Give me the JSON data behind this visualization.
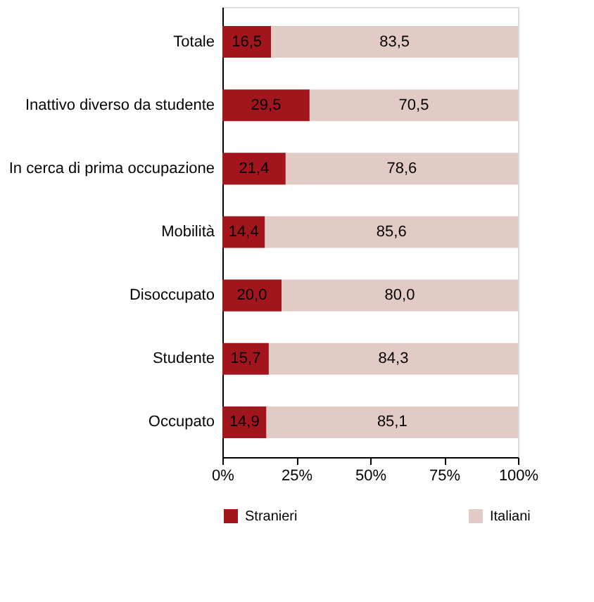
{
  "chart_data": {
    "type": "bar",
    "orientation": "horizontal",
    "stacked": true,
    "categories": [
      "Totale",
      "Inattivo diverso da studente",
      "In cerca di prima occupazione",
      "Mobilità",
      "Disoccupato",
      "Studente",
      "Occupato"
    ],
    "series": [
      {
        "name": "Stranieri",
        "color": "#a3151c",
        "values": [
          16.5,
          29.5,
          21.4,
          14.4,
          20.0,
          15.7,
          14.9
        ],
        "value_labels": [
          "16,5",
          "29,5",
          "21,4",
          "14,4",
          "20,0",
          "15,7",
          "14,9"
        ]
      },
      {
        "name": "Italiani",
        "color": "#e2cbc5",
        "values": [
          83.5,
          70.5,
          78.6,
          85.6,
          80.0,
          84.3,
          85.1
        ],
        "value_labels": [
          "83,5",
          "70,5",
          "78,6",
          "85,6",
          "80,0",
          "84,3",
          "85,1"
        ]
      }
    ],
    "xlim": [
      0,
      100
    ],
    "xticks": [
      {
        "value": 0,
        "label": "0%"
      },
      {
        "value": 25,
        "label": "25%"
      },
      {
        "value": 50,
        "label": "50%"
      },
      {
        "value": 75,
        "label": "75%"
      },
      {
        "value": 100,
        "label": "100%"
      }
    ],
    "grid": false,
    "legend": "bottom"
  }
}
